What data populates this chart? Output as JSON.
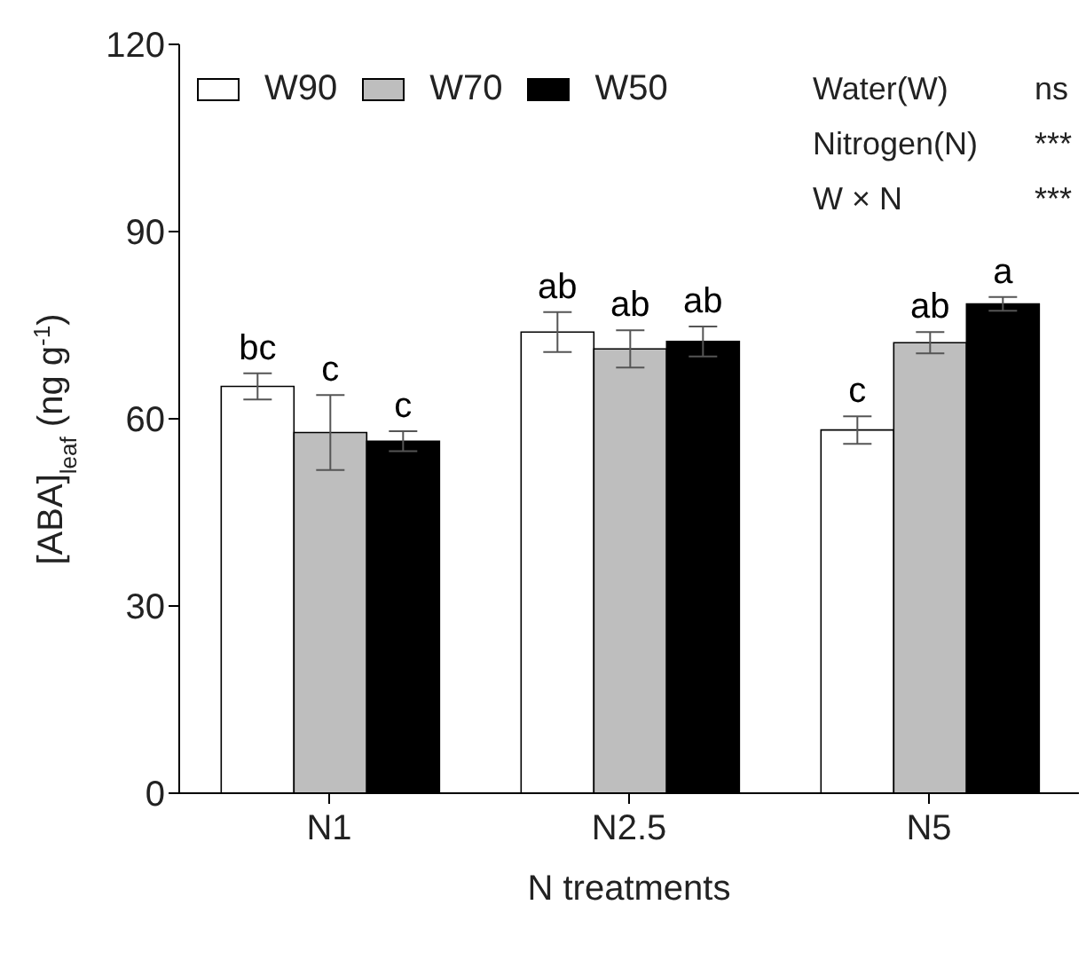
{
  "chart_data": {
    "type": "bar",
    "xlabel": "N treatments",
    "ylabel": "[ABA]$_{leaf}$ (ng g$^{-1}$)",
    "categories": [
      "N1",
      "N2.5",
      "N5"
    ],
    "series": [
      {
        "name": "W90",
        "color": "#ffffff",
        "values": [
          65.2,
          73.9,
          58.2
        ],
        "errors": [
          2.1,
          3.2,
          2.2
        ],
        "value_labels": [
          "bc",
          "ab",
          "c"
        ]
      },
      {
        "name": "W70",
        "color": "#bebebe",
        "values": [
          57.8,
          71.2,
          72.2
        ],
        "errors": [
          6,
          3,
          1.7
        ],
        "value_labels": [
          "c",
          "ab",
          "ab"
        ]
      },
      {
        "name": "W50",
        "color": "#000000",
        "values": [
          56.4,
          72.4,
          78.4
        ],
        "errors": [
          1.6,
          2.4,
          1.1
        ],
        "value_labels": [
          "c",
          "ab",
          "a"
        ]
      }
    ],
    "ylim": [
      0,
      120
    ],
    "yticks": [
      0,
      30,
      60,
      90,
      120
    ],
    "grid": false,
    "legend": "top left",
    "annotations": [
      "Water(W)",
      "ns",
      "Nitrogen(N)",
      "***",
      "W × N",
      "***"
    ]
  }
}
